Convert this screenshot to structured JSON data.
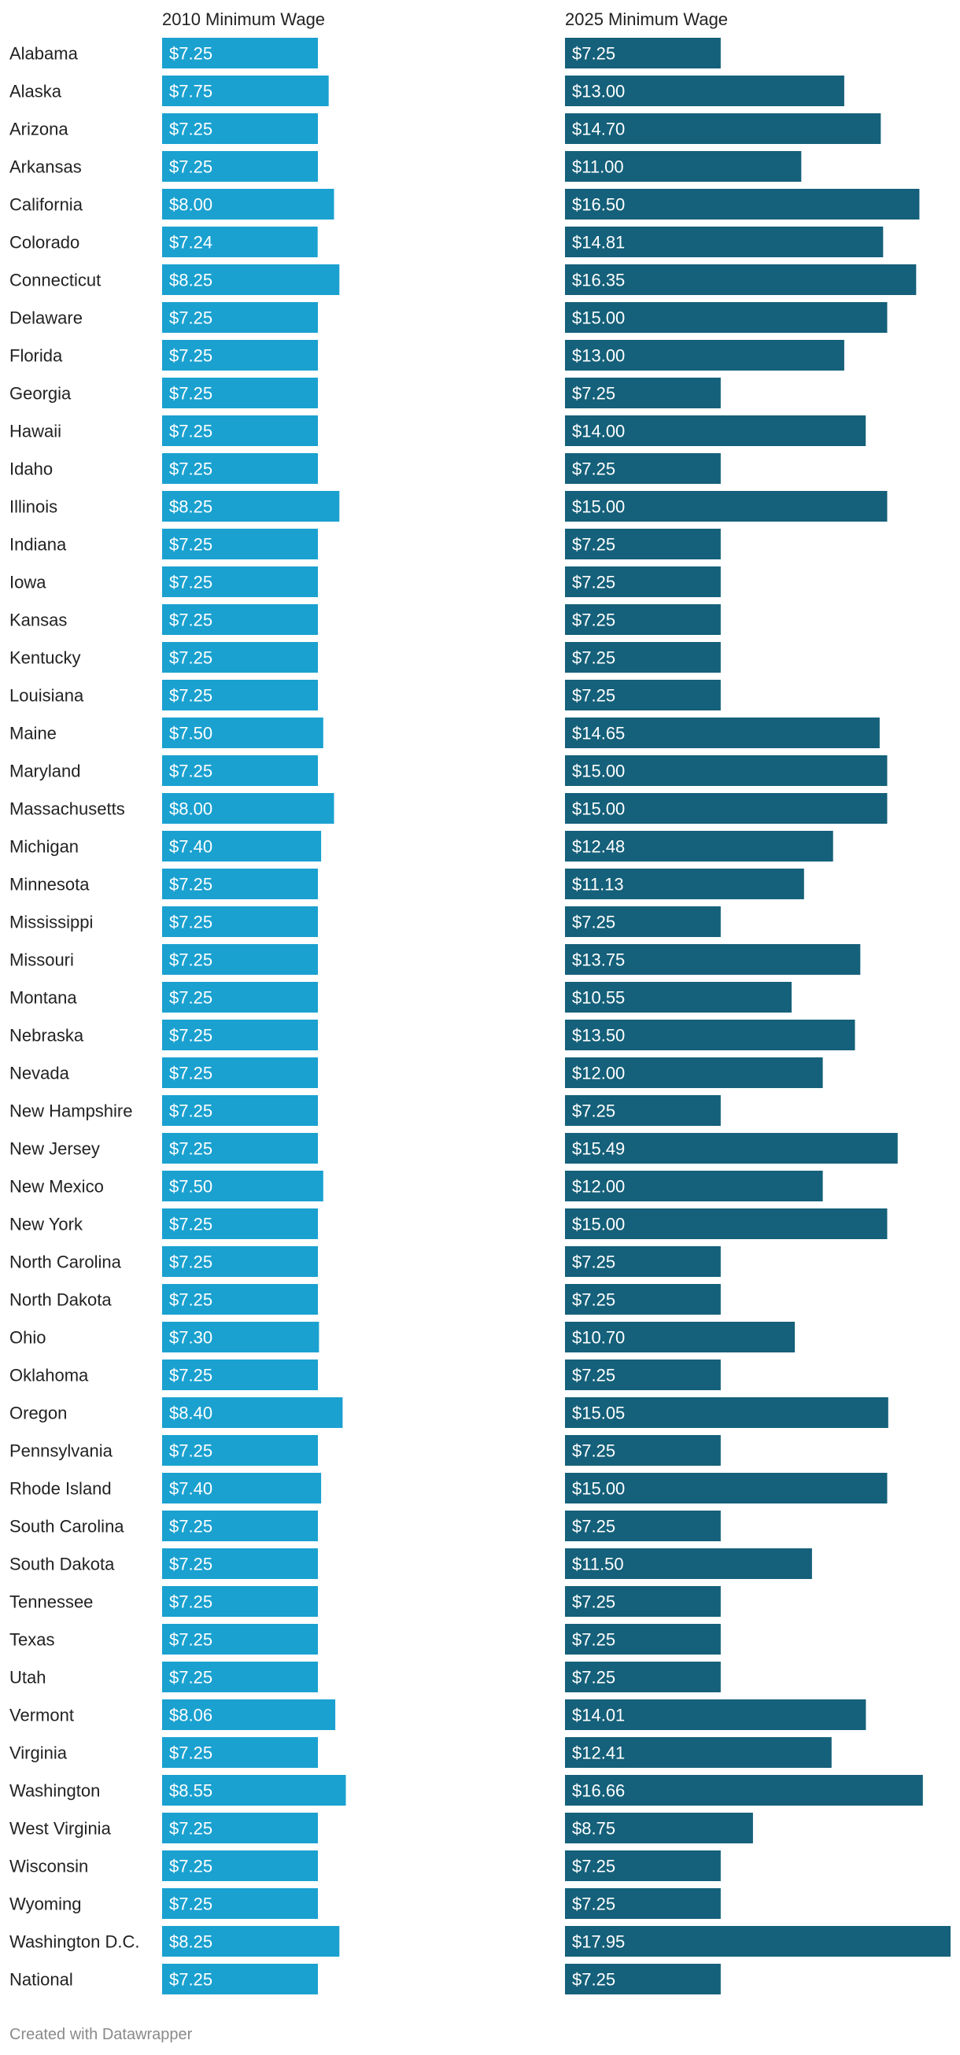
{
  "chart_data": {
    "type": "bar",
    "orientation": "horizontal",
    "categories": [
      "Alabama",
      "Alaska",
      "Arizona",
      "Arkansas",
      "California",
      "Colorado",
      "Connecticut",
      "Delaware",
      "Florida",
      "Georgia",
      "Hawaii",
      "Idaho",
      "Illinois",
      "Indiana",
      "Iowa",
      "Kansas",
      "Kentucky",
      "Louisiana",
      "Maine",
      "Maryland",
      "Massachusetts",
      "Michigan",
      "Minnesota",
      "Mississippi",
      "Missouri",
      "Montana",
      "Nebraska",
      "Nevada",
      "New Hampshire",
      "New Jersey",
      "New Mexico",
      "New York",
      "North Carolina",
      "North Dakota",
      "Ohio",
      "Oklahoma",
      "Oregon",
      "Pennsylvania",
      "Rhode Island",
      "South Carolina",
      "South Dakota",
      "Tennessee",
      "Texas",
      "Utah",
      "Vermont",
      "Virginia",
      "Washington",
      "West Virginia",
      "Wisconsin",
      "Wyoming",
      "Washington D.C.",
      "National"
    ],
    "series": [
      {
        "name": "2010 Minimum Wage",
        "color": "#1aa1d0",
        "values": [
          7.25,
          7.75,
          7.25,
          7.25,
          8.0,
          7.24,
          8.25,
          7.25,
          7.25,
          7.25,
          7.25,
          7.25,
          8.25,
          7.25,
          7.25,
          7.25,
          7.25,
          7.25,
          7.5,
          7.25,
          8.0,
          7.4,
          7.25,
          7.25,
          7.25,
          7.25,
          7.25,
          7.25,
          7.25,
          7.25,
          7.5,
          7.25,
          7.25,
          7.25,
          7.3,
          7.25,
          8.4,
          7.25,
          7.4,
          7.25,
          7.25,
          7.25,
          7.25,
          7.25,
          8.06,
          7.25,
          8.55,
          7.25,
          7.25,
          7.25,
          8.25,
          7.25
        ]
      },
      {
        "name": "2025 Minimum Wage",
        "color": "#15607a",
        "values": [
          7.25,
          13.0,
          14.7,
          11.0,
          16.5,
          14.81,
          16.35,
          15.0,
          13.0,
          7.25,
          14.0,
          7.25,
          15.0,
          7.25,
          7.25,
          7.25,
          7.25,
          7.25,
          14.65,
          15.0,
          15.0,
          12.48,
          11.13,
          7.25,
          13.75,
          10.55,
          13.5,
          12.0,
          7.25,
          15.49,
          12.0,
          15.0,
          7.25,
          7.25,
          10.7,
          7.25,
          15.05,
          7.25,
          15.0,
          7.25,
          11.5,
          7.25,
          7.25,
          7.25,
          14.01,
          12.41,
          16.66,
          8.75,
          7.25,
          7.25,
          17.95,
          7.25
        ]
      }
    ],
    "value_prefix": "$",
    "value_decimals": 2,
    "xlim": [
      0,
      17.95
    ]
  },
  "footer": "Created with Datawrapper"
}
